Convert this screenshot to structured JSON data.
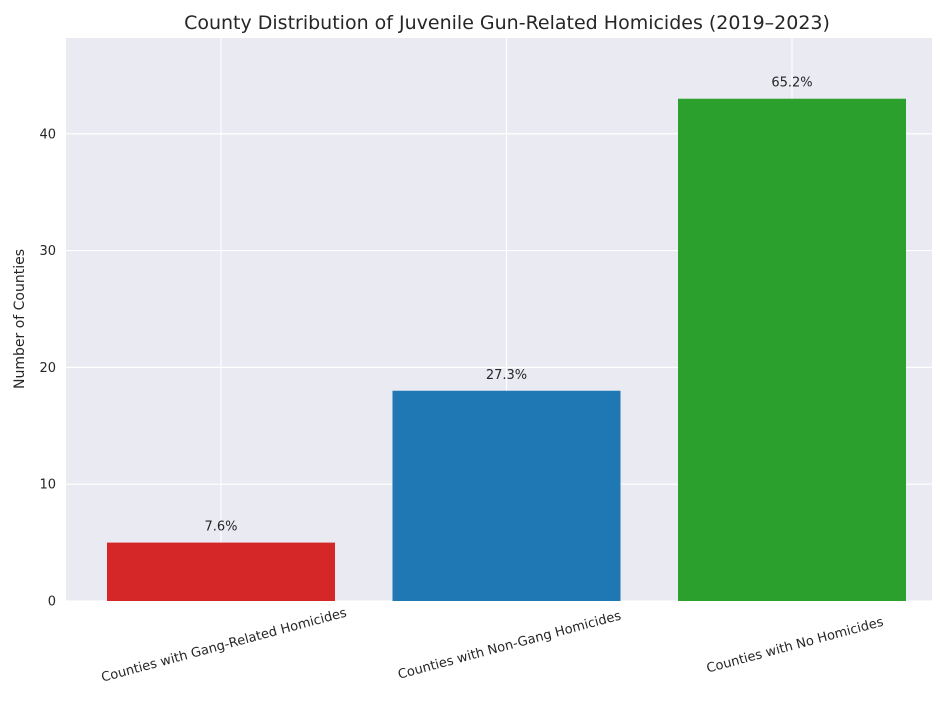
{
  "chart_data": {
    "type": "bar",
    "title": "County Distribution of Juvenile Gun-Related Homicides (2019–2023)",
    "xlabel": "",
    "ylabel": "Number of Counties",
    "categories": [
      "Counties with Gang-Related Homicides",
      "Counties with Non-Gang Homicides",
      "Counties with No Homicides"
    ],
    "values": [
      5,
      18,
      43
    ],
    "bar_labels": [
      "7.6%",
      "27.3%",
      "65.2%"
    ],
    "colors": [
      "#d62728",
      "#1f77b4",
      "#2ca02c"
    ],
    "ylim": [
      0,
      48.2
    ],
    "yticks": [
      0,
      10,
      20,
      30,
      40
    ],
    "grid": true,
    "background": "#eaeaf2",
    "gridColor": "#ffffff",
    "legend": "none"
  }
}
